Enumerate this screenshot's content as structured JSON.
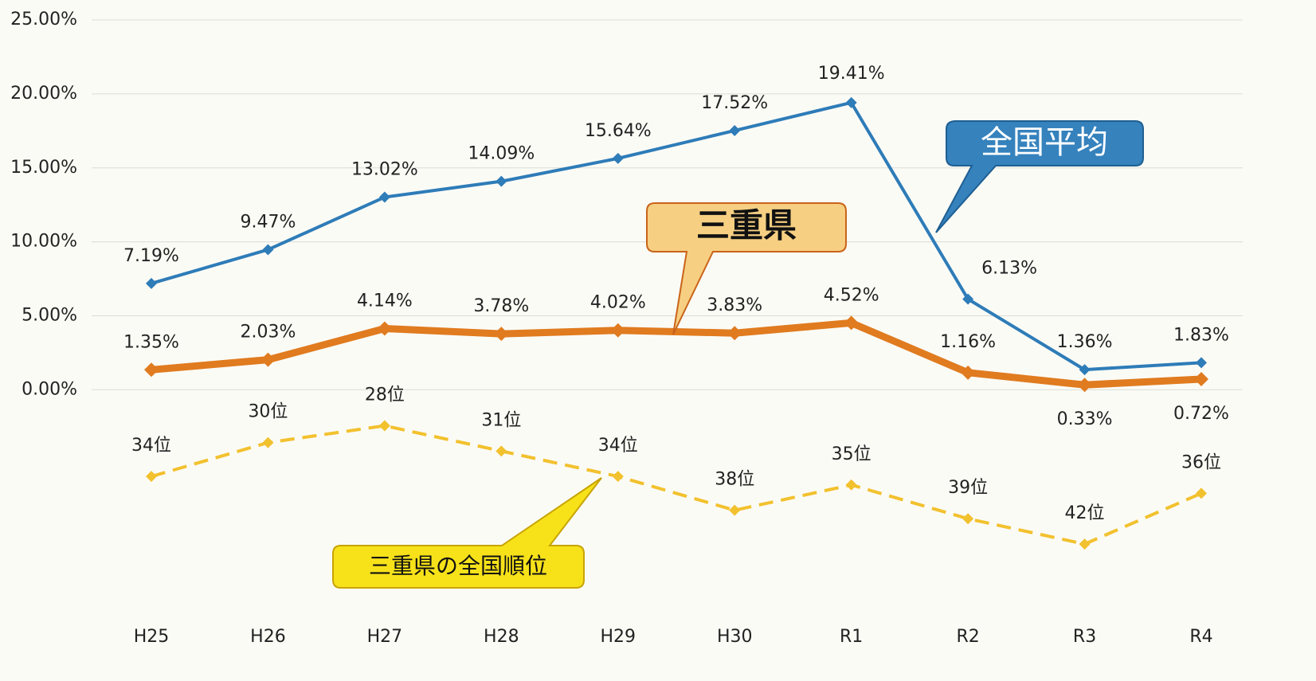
{
  "chart_data": {
    "type": "line",
    "categories": [
      "H25",
      "H26",
      "H27",
      "H28",
      "H29",
      "H30",
      "R1",
      "R2",
      "R3",
      "R4"
    ],
    "series": [
      {
        "name": "全国平均",
        "color": "#2e7cb8",
        "style": "solid",
        "values": [
          7.19,
          9.47,
          13.02,
          14.09,
          15.64,
          17.52,
          19.41,
          6.13,
          1.36,
          1.83
        ],
        "value_labels": [
          "7.19%",
          "9.47%",
          "13.02%",
          "14.09%",
          "15.64%",
          "17.52%",
          "19.41%",
          "6.13%",
          "1.36%",
          "1.83%"
        ]
      },
      {
        "name": "三重県",
        "color": "#e07b1f",
        "style": "solid",
        "values": [
          1.35,
          2.03,
          4.14,
          3.78,
          4.02,
          3.83,
          4.52,
          1.16,
          0.33,
          0.72
        ],
        "value_labels": [
          "1.35%",
          "2.03%",
          "4.14%",
          "3.78%",
          "4.02%",
          "3.83%",
          "4.52%",
          "1.16%",
          "0.33%",
          "0.72%"
        ]
      },
      {
        "name": "三重県の全国順位",
        "color": "#f2c12e",
        "style": "dashed",
        "axis": "y2",
        "values": [
          34,
          30,
          28,
          31,
          34,
          38,
          35,
          39,
          42,
          36
        ],
        "value_labels": [
          "34位",
          "30位",
          "28位",
          "31位",
          "34位",
          "38位",
          "35位",
          "39位",
          "42位",
          "36位"
        ]
      }
    ],
    "ylim": [
      -15,
      25
    ],
    "yticks": [
      {
        "value": 0,
        "label": "0.00%"
      },
      {
        "value": 5,
        "label": "5.00%"
      },
      {
        "value": 10,
        "label": "10.00%"
      },
      {
        "value": 15,
        "label": "15.00%"
      },
      {
        "value": 20,
        "label": "20.00%"
      },
      {
        "value": 25,
        "label": "25.00%"
      }
    ],
    "y2lim": [
      50,
      -20
    ],
    "grid": true
  }
}
